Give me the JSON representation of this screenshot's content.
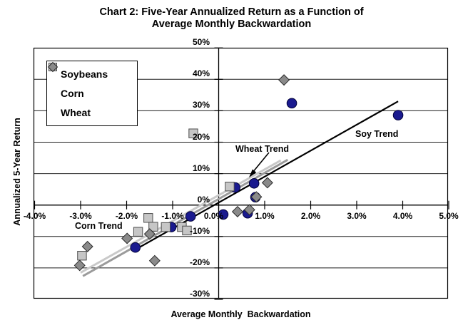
{
  "title": {
    "line1": "Chart 2: Five-Year Annualized Return as a Function of",
    "line2": "Average Monthly Backwardation"
  },
  "axes": {
    "y_label": "Annualized 5-Year Return",
    "x_label": "Average Monthly  Backwardation",
    "y_ticks": [
      "50%",
      "40%",
      "30%",
      "20%",
      "10%",
      "0%",
      "-10%",
      "-20%",
      "-30%"
    ],
    "y_tick_values": [
      50,
      40,
      30,
      20,
      10,
      0,
      -10,
      -20,
      -30
    ],
    "x_ticks": [
      "-4.0%",
      "-3.0%",
      "-2.0%",
      "-1.0%",
      "0.0%",
      "1.0%",
      "2.0%",
      "3.0%",
      "4.0%",
      "5.0%"
    ],
    "x_tick_values": [
      -4,
      -3,
      -2,
      -1,
      0,
      1,
      2,
      3,
      4,
      5
    ]
  },
  "legend": {
    "items": [
      {
        "label": "Soybeans",
        "marker": "circle",
        "color": "#1a1a8f",
        "stroke": "#00003a"
      },
      {
        "label": "Corn",
        "marker": "square",
        "color": "#c6c6c6",
        "stroke": "#4d4d4d"
      },
      {
        "label": "Wheat",
        "marker": "diamond",
        "color": "#8a8a8a",
        "stroke": "#2b2b2b"
      }
    ]
  },
  "annotations": {
    "corn_trend": "Corn Trend",
    "wheat_trend": "Wheat Trend",
    "soy_trend": "Soy Trend"
  },
  "chart_data": {
    "type": "scatter",
    "title": "Chart 2: Five-Year Annualized Return as a Function of Average Monthly Backwardation",
    "xlabel": "Average Monthly Backwardation",
    "ylabel": "Annualized 5-Year Return",
    "x_unit": "%",
    "y_unit": "%",
    "xlim": [
      -4,
      5
    ],
    "ylim": [
      -30,
      50
    ],
    "grid": "horizontal-only",
    "legend_position": "top-left-inside",
    "axis_cross": {
      "x_axis_at_y": 0,
      "y_axis_at_x": 0
    },
    "series": [
      {
        "name": "Soybeans",
        "marker": "circle",
        "color": "#1a1a8f",
        "stroke": "#00003a",
        "points": [
          [
            -1.81,
            -13.5
          ],
          [
            -1.03,
            -7.0
          ],
          [
            -0.61,
            -3.6
          ],
          [
            0.1,
            -3.0
          ],
          [
            0.63,
            -2.6
          ],
          [
            0.36,
            5.6
          ],
          [
            0.8,
            2.5
          ],
          [
            0.77,
            6.9
          ],
          [
            1.59,
            32.4
          ],
          [
            3.9,
            28.6
          ]
        ]
      },
      {
        "name": "Corn",
        "marker": "square",
        "color": "#c6c6c6",
        "stroke": "#4d4d4d",
        "points": [
          [
            -2.97,
            -16.1
          ],
          [
            -1.75,
            -8.5
          ],
          [
            -1.53,
            -4.1
          ],
          [
            -1.42,
            -6.9
          ],
          [
            -1.15,
            -7.0
          ],
          [
            -0.8,
            -7.0
          ],
          [
            -0.69,
            -8.1
          ],
          [
            -0.55,
            22.8
          ],
          [
            0.24,
            5.9
          ]
        ]
      },
      {
        "name": "Wheat",
        "marker": "diamond",
        "color": "#8a8a8a",
        "stroke": "#2b2b2b",
        "points": [
          [
            -3.02,
            -19.2
          ],
          [
            -2.85,
            -13.2
          ],
          [
            -1.99,
            -10.6
          ],
          [
            -1.5,
            -9.2
          ],
          [
            -1.39,
            -17.7
          ],
          [
            0.41,
            -2.1
          ],
          [
            0.67,
            -1.5
          ],
          [
            0.82,
            2.6
          ],
          [
            1.06,
            7.1
          ],
          [
            1.42,
            39.8
          ]
        ]
      }
    ],
    "trend_lines": [
      {
        "name": "Corn Trend",
        "color": "#c9c9c9",
        "points": [
          [
            -3.0,
            -21.5
          ],
          [
            1.35,
            14.2
          ]
        ]
      },
      {
        "name": "Wheat Trend",
        "color": "#9b9b9b",
        "points": [
          [
            -2.95,
            -22.6
          ],
          [
            1.5,
            14.4
          ]
        ]
      },
      {
        "name": "Soy Trend",
        "color": "#000000",
        "points": [
          [
            -1.85,
            -14.5
          ],
          [
            3.9,
            33.0
          ]
        ]
      }
    ]
  }
}
